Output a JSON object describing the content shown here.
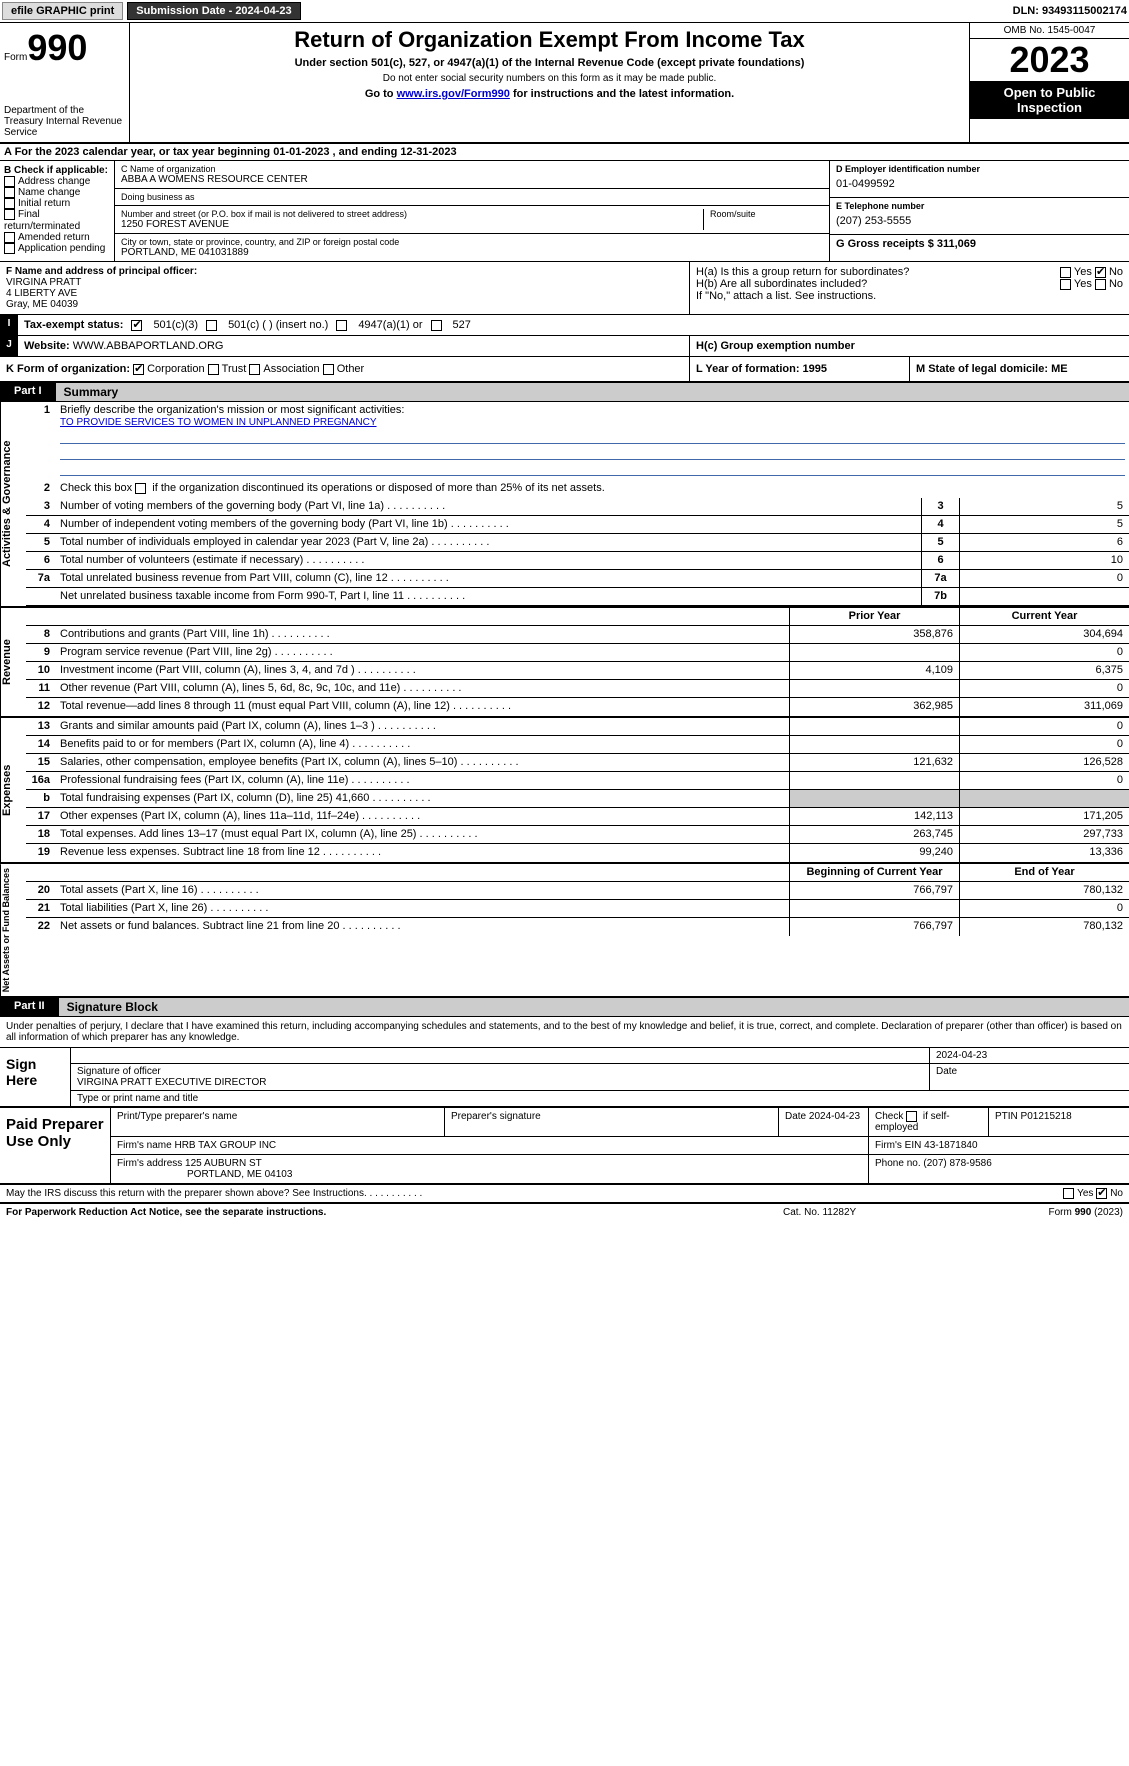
{
  "topbar": {
    "efile": "efile GRAPHIC print",
    "submission": "Submission Date - 2024-04-23",
    "dln": "DLN: 93493115002174"
  },
  "header": {
    "form_label": "Form",
    "form_num": "990",
    "dept": "Department of the Treasury Internal Revenue Service",
    "title": "Return of Organization Exempt From Income Tax",
    "subtitle": "Under section 501(c), 527, or 4947(a)(1) of the Internal Revenue Code (except private foundations)",
    "ssn_note": "Do not enter social security numbers on this form as it may be made public.",
    "goto": "Go to ",
    "goto_link": "www.irs.gov/Form990",
    "goto_rest": " for instructions and the latest information.",
    "omb": "OMB No. 1545-0047",
    "year": "2023",
    "otp": "Open to Public Inspection"
  },
  "sectionA": "A For the 2023 calendar year, or tax year beginning 01-01-2023   , and ending 12-31-2023",
  "B": {
    "label": "B Check if applicable:",
    "items": [
      "Address change",
      "Name change",
      "Initial return",
      "Final return/terminated",
      "Amended return",
      "Application pending"
    ]
  },
  "C": {
    "name_label": "C Name of organization",
    "name": "ABBA A WOMENS RESOURCE CENTER",
    "dba_label": "Doing business as",
    "dba": "",
    "addr_label": "Number and street (or P.O. box if mail is not delivered to street address)",
    "room_label": "Room/suite",
    "addr": "1250 FOREST AVENUE",
    "city_label": "City or town, state or province, country, and ZIP or foreign postal code",
    "city": "PORTLAND, ME  041031889"
  },
  "D": {
    "label": "D Employer identification number",
    "value": "01-0499592"
  },
  "E": {
    "label": "E Telephone number",
    "value": "(207) 253-5555"
  },
  "G": {
    "label": "G Gross receipts $ 311,069"
  },
  "F": {
    "label": "F  Name and address of principal officer:",
    "name": "VIRGINA PRATT",
    "addr1": "4 LIBERTY AVE",
    "addr2": "Gray, ME  04039"
  },
  "H": {
    "a": "H(a)  Is this a group return for subordinates?",
    "b": "H(b)  Are all subordinates included?",
    "b_note": "If \"No,\" attach a list. See instructions.",
    "c": "H(c)  Group exemption number ",
    "yes": "Yes",
    "no": "No"
  },
  "I": {
    "label": "Tax-exempt status:",
    "opts": [
      "501(c)(3)",
      "501(c) (  ) (insert no.)",
      "4947(a)(1) or",
      "527"
    ]
  },
  "J": {
    "label": "Website: ",
    "value": "WWW.ABBAPORTLAND.ORG"
  },
  "K": {
    "label": "K Form of organization:",
    "opts": [
      "Corporation",
      "Trust",
      "Association",
      "Other"
    ]
  },
  "L": "L Year of formation: 1995",
  "M": "M State of legal domicile: ME",
  "part1": {
    "tab": "Part I",
    "title": "Summary"
  },
  "summary": {
    "line1_label": "Briefly describe the organization's mission or most significant activities:",
    "line1_text": "TO PROVIDE SERVICES TO WOMEN IN UNPLANNED PREGNANCY",
    "line2": "Check this box      if the organization discontinued its operations or disposed of more than 25% of its net assets.",
    "rows_ag": [
      {
        "n": "3",
        "d": "Number of voting members of the governing body (Part VI, line 1a)",
        "b": "3",
        "v": "5"
      },
      {
        "n": "4",
        "d": "Number of independent voting members of the governing body (Part VI, line 1b)",
        "b": "4",
        "v": "5"
      },
      {
        "n": "5",
        "d": "Total number of individuals employed in calendar year 2023 (Part V, line 2a)",
        "b": "5",
        "v": "6"
      },
      {
        "n": "6",
        "d": "Total number of volunteers (estimate if necessary)",
        "b": "6",
        "v": "10"
      },
      {
        "n": "7a",
        "d": "Total unrelated business revenue from Part VIII, column (C), line 12",
        "b": "7a",
        "v": "0"
      },
      {
        "n": "",
        "d": "Net unrelated business taxable income from Form 990-T, Part I, line 11",
        "b": "7b",
        "v": ""
      }
    ],
    "hdr_prior": "Prior Year",
    "hdr_curr": "Current Year",
    "revenue": [
      {
        "n": "8",
        "d": "Contributions and grants (Part VIII, line 1h)",
        "p": "358,876",
        "c": "304,694"
      },
      {
        "n": "9",
        "d": "Program service revenue (Part VIII, line 2g)",
        "p": "",
        "c": "0"
      },
      {
        "n": "10",
        "d": "Investment income (Part VIII, column (A), lines 3, 4, and 7d )",
        "p": "4,109",
        "c": "6,375"
      },
      {
        "n": "11",
        "d": "Other revenue (Part VIII, column (A), lines 5, 6d, 8c, 9c, 10c, and 11e)",
        "p": "",
        "c": "0"
      },
      {
        "n": "12",
        "d": "Total revenue—add lines 8 through 11 (must equal Part VIII, column (A), line 12)",
        "p": "362,985",
        "c": "311,069"
      }
    ],
    "expenses": [
      {
        "n": "13",
        "d": "Grants and similar amounts paid (Part IX, column (A), lines 1–3 )",
        "p": "",
        "c": "0"
      },
      {
        "n": "14",
        "d": "Benefits paid to or for members (Part IX, column (A), line 4)",
        "p": "",
        "c": "0"
      },
      {
        "n": "15",
        "d": "Salaries, other compensation, employee benefits (Part IX, column (A), lines 5–10)",
        "p": "121,632",
        "c": "126,528"
      },
      {
        "n": "16a",
        "d": "Professional fundraising fees (Part IX, column (A), line 11e)",
        "p": "",
        "c": "0"
      },
      {
        "n": "b",
        "d": "Total fundraising expenses (Part IX, column (D), line 25) 41,660",
        "p": "grey",
        "c": "grey"
      },
      {
        "n": "17",
        "d": "Other expenses (Part IX, column (A), lines 11a–11d, 11f–24e)",
        "p": "142,113",
        "c": "171,205"
      },
      {
        "n": "18",
        "d": "Total expenses. Add lines 13–17 (must equal Part IX, column (A), line 25)",
        "p": "263,745",
        "c": "297,733"
      },
      {
        "n": "19",
        "d": "Revenue less expenses. Subtract line 18 from line 12",
        "p": "99,240",
        "c": "13,336"
      }
    ],
    "hdr_beg": "Beginning of Current Year",
    "hdr_end": "End of Year",
    "netassets": [
      {
        "n": "20",
        "d": "Total assets (Part X, line 16)",
        "p": "766,797",
        "c": "780,132"
      },
      {
        "n": "21",
        "d": "Total liabilities (Part X, line 26)",
        "p": "",
        "c": "0"
      },
      {
        "n": "22",
        "d": "Net assets or fund balances. Subtract line 21 from line 20",
        "p": "766,797",
        "c": "780,132"
      }
    ],
    "sides": {
      "ag": "Activities & Governance",
      "rev": "Revenue",
      "exp": "Expenses",
      "na": "Net Assets or Fund Balances"
    }
  },
  "part2": {
    "tab": "Part II",
    "title": "Signature Block"
  },
  "sig": {
    "intro": "Under penalties of perjury, I declare that I have examined this return, including accompanying schedules and statements, and to the best of my knowledge and belief, it is true, correct, and complete. Declaration of preparer (other than officer) is based on all information of which preparer has any knowledge.",
    "sign_here": "Sign Here",
    "sig_label": "Signature of officer",
    "officer": "VIRGINA PRATT  EXECUTIVE DIRECTOR",
    "type_label": "Type or print name and title",
    "date_label": "Date",
    "date": "2024-04-23"
  },
  "prep": {
    "label": "Paid Preparer Use Only",
    "r1": [
      "Print/Type preparer's name",
      "Preparer's signature",
      "Date 2024-04-23",
      "Check      if self-employed",
      "PTIN P01215218"
    ],
    "r2_name": "Firm's name    HRB TAX GROUP INC",
    "r2_ein": "Firm's EIN  43-1871840",
    "r3_addr1": "Firm's address 125 AUBURN ST",
    "r3_addr2": "PORTLAND, ME  04103",
    "r3_phone": "Phone no. (207) 878-9586"
  },
  "footer": {
    "discuss": "May the IRS discuss this return with the preparer shown above? See Instructions.",
    "paperwork": "For Paperwork Reduction Act Notice, see the separate instructions.",
    "cat": "Cat. No. 11282Y",
    "form": "Form 990 (2023)",
    "yes": "Yes",
    "no": "No"
  }
}
